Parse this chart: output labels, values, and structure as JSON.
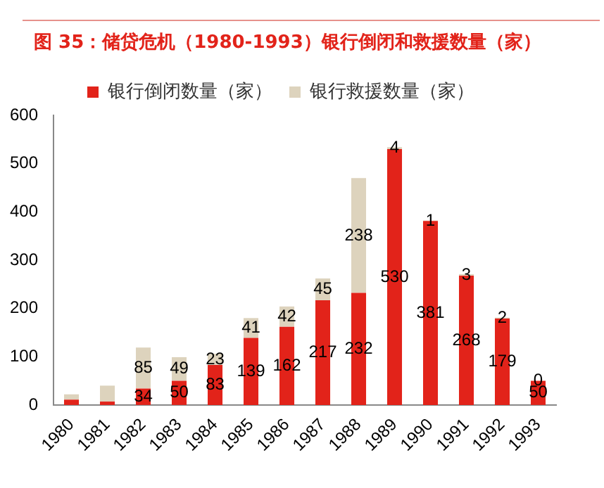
{
  "chart_data": {
    "type": "bar",
    "title": "图 35：储贷危机（1980-1993）银行倒闭和救援数量（家）",
    "categories": [
      "1980",
      "1981",
      "1982",
      "1983",
      "1984",
      "1985",
      "1986",
      "1987",
      "1988",
      "1989",
      "1990",
      "1991",
      "1992",
      "1993"
    ],
    "stacked": true,
    "series": [
      {
        "name": "银行倒闭数量（家）",
        "color": "#e2231a",
        "values": [
          11,
          7,
          34,
          50,
          83,
          139,
          162,
          217,
          232,
          530,
          381,
          268,
          179,
          50
        ],
        "value_labels": [
          null,
          null,
          "34",
          "50",
          "83",
          "139",
          "162",
          "217",
          "232",
          "530",
          "381",
          "268",
          "179",
          "50"
        ]
      },
      {
        "name": "银行救援数量（家）",
        "color": "#ddd3bd",
        "values": [
          11,
          33,
          85,
          49,
          23,
          41,
          42,
          45,
          238,
          4,
          1,
          3,
          2,
          0
        ],
        "value_labels": [
          null,
          null,
          "85",
          "49",
          "23",
          "41",
          "42",
          "45",
          "238",
          "4",
          "1",
          "3",
          "2",
          "0"
        ]
      }
    ],
    "ylim": [
      0,
      600
    ],
    "yticks": [
      0,
      100,
      200,
      300,
      400,
      500,
      600
    ],
    "grid": false,
    "legend": "top"
  }
}
